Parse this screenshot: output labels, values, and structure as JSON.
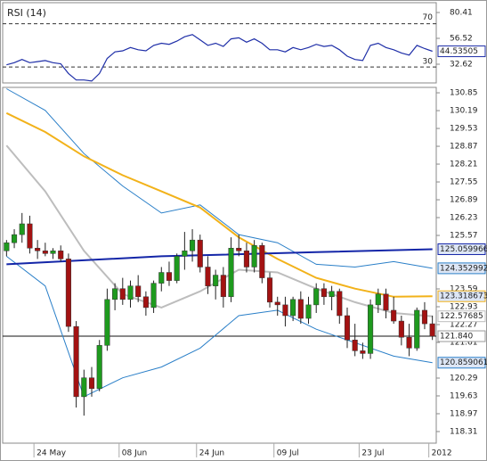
{
  "chart_data": [
    {
      "type": "line",
      "title": "RSI (14)",
      "color": "#1f2fa8",
      "values": [
        32,
        34,
        37,
        34,
        35,
        36,
        34,
        33,
        24,
        18,
        18,
        17,
        24,
        38,
        44,
        45,
        48,
        46,
        45,
        50,
        52,
        51,
        54,
        58,
        60,
        55,
        50,
        52,
        49,
        56,
        57,
        53,
        56,
        52,
        46,
        46,
        44,
        48,
        46,
        48,
        51,
        49,
        50,
        46,
        40,
        37,
        36,
        50,
        52,
        48,
        46,
        43,
        41,
        50,
        47,
        44.53505
      ],
      "ylim": [
        15.3,
        89.5
      ],
      "yticks": [
        80.41,
        56.52,
        32.62
      ],
      "levels": [
        70,
        30
      ]
    },
    {
      "type": "candlestick",
      "categories": [
        null,
        null,
        null,
        null,
        "24 May",
        null,
        null,
        null,
        null,
        null,
        null,
        null,
        null,
        null,
        null,
        "08 Jun",
        null,
        null,
        null,
        null,
        null,
        null,
        null,
        null,
        null,
        "24 Jun",
        null,
        null,
        null,
        null,
        null,
        null,
        null,
        null,
        null,
        "09 Jul",
        null,
        null,
        null,
        null,
        null,
        null,
        null,
        null,
        null,
        null,
        "23 Jul",
        null,
        null,
        null,
        null,
        null,
        null,
        null,
        null,
        "2012"
      ],
      "open": [
        125.0,
        125.3,
        125.6,
        126.0,
        125.1,
        125.0,
        124.9,
        125.0,
        124.7,
        122.2,
        119.6,
        120.3,
        119.9,
        121.5,
        123.2,
        123.6,
        123.2,
        123.7,
        123.3,
        122.9,
        123.8,
        124.2,
        123.9,
        124.8,
        125.0,
        125.4,
        124.4,
        123.7,
        124.1,
        123.3,
        125.1,
        125.0,
        124.4,
        125.2,
        124.0,
        123.1,
        123.0,
        122.6,
        123.2,
        122.5,
        123.0,
        123.6,
        123.3,
        123.5,
        122.6,
        121.7,
        121.3,
        121.2,
        123.0,
        123.4,
        122.8,
        122.4,
        121.8,
        121.4,
        122.8,
        122.3
      ],
      "high": [
        125.4,
        125.8,
        126.4,
        126.3,
        125.4,
        125.3,
        125.1,
        125.2,
        124.9,
        122.4,
        120.6,
        120.7,
        121.7,
        123.6,
        123.8,
        124.0,
        123.9,
        124.1,
        123.5,
        123.9,
        124.4,
        124.6,
        124.9,
        125.7,
        125.8,
        125.6,
        124.8,
        124.3,
        124.4,
        125.5,
        125.6,
        125.3,
        125.4,
        125.3,
        124.2,
        123.3,
        123.3,
        123.3,
        123.5,
        123.3,
        123.8,
        123.8,
        123.7,
        123.6,
        122.9,
        122.3,
        121.6,
        123.2,
        123.6,
        123.6,
        123.3,
        122.6,
        122.3,
        122.9,
        123.1,
        122.6
      ],
      "low": [
        124.8,
        125.1,
        125.3,
        124.9,
        124.7,
        124.8,
        124.7,
        124.6,
        122.0,
        119.2,
        118.9,
        119.6,
        119.8,
        121.3,
        122.8,
        123.0,
        122.9,
        123.1,
        122.6,
        122.7,
        123.5,
        123.7,
        123.8,
        124.3,
        124.6,
        124.2,
        123.4,
        123.2,
        122.9,
        123.1,
        124.8,
        124.2,
        124.2,
        123.8,
        122.9,
        122.6,
        122.2,
        122.4,
        122.3,
        122.3,
        122.7,
        123.0,
        122.8,
        122.3,
        121.4,
        121.1,
        121.0,
        121.0,
        122.7,
        122.5,
        122.3,
        121.5,
        121.1,
        121.3,
        122.1,
        121.7
      ],
      "close": [
        125.3,
        125.6,
        126.0,
        125.1,
        125.0,
        124.9,
        125.0,
        124.7,
        122.2,
        119.6,
        120.3,
        119.9,
        121.5,
        123.2,
        123.6,
        123.2,
        123.7,
        123.3,
        122.9,
        123.8,
        124.2,
        123.9,
        124.8,
        125.0,
        125.4,
        124.4,
        123.7,
        124.1,
        123.3,
        125.1,
        125.0,
        124.4,
        125.2,
        124.0,
        123.1,
        123.0,
        122.6,
        123.2,
        122.5,
        123.0,
        123.6,
        123.3,
        123.5,
        122.6,
        121.7,
        121.3,
        121.2,
        123.0,
        123.4,
        122.8,
        122.4,
        121.8,
        121.4,
        122.8,
        122.3,
        121.84
      ],
      "up_color": "#1e9a1e",
      "down_color": "#a31212",
      "ylim": [
        117.88,
        131.05
      ],
      "yticks": [
        130.85,
        130.19,
        129.53,
        128.87,
        128.21,
        127.55,
        126.89,
        126.23,
        125.57,
        123.59,
        122.93,
        122.27,
        121.61,
        120.29,
        119.63,
        118.97,
        118.31
      ],
      "overlays": [
        {
          "color": "#2a7fc8",
          "x": [
            0,
            5,
            10,
            15,
            20,
            25,
            30,
            35,
            40,
            45,
            50,
            55
          ],
          "values": [
            131.0,
            130.2,
            128.6,
            127.4,
            126.4,
            126.7,
            125.6,
            125.3,
            124.5,
            124.4,
            124.6,
            124.352992
          ]
        },
        {
          "color": "#2a7fc8",
          "x": [
            0,
            5,
            10,
            15,
            20,
            25,
            30,
            35,
            40,
            45,
            50,
            55
          ],
          "values": [
            124.8,
            123.7,
            119.6,
            120.3,
            120.7,
            121.4,
            122.6,
            122.8,
            122.1,
            121.6,
            121.1,
            120.859061
          ]
        },
        {
          "color": "#bdbdbd",
          "x": [
            0,
            5,
            10,
            15,
            20,
            25,
            30,
            35,
            40,
            45,
            50,
            55
          ],
          "values": [
            128.9,
            127.2,
            125.0,
            123.4,
            122.9,
            123.5,
            124.3,
            124.2,
            123.6,
            123.1,
            122.7,
            122.57685
          ]
        },
        {
          "color": "#f2b21a",
          "x": [
            0,
            5,
            10,
            15,
            20,
            25,
            30,
            35,
            40,
            45,
            50,
            55
          ],
          "values": [
            130.1,
            129.4,
            128.5,
            127.8,
            127.2,
            126.6,
            125.5,
            124.7,
            124.0,
            123.6,
            123.3,
            123.318673
          ]
        },
        {
          "color": "#1426a8",
          "x": [
            0,
            20,
            40,
            55
          ],
          "values": [
            124.5,
            124.8,
            124.95,
            125.059966
          ]
        }
      ],
      "last_price": {
        "value": 121.84,
        "label": "121.840"
      }
    }
  ]
}
